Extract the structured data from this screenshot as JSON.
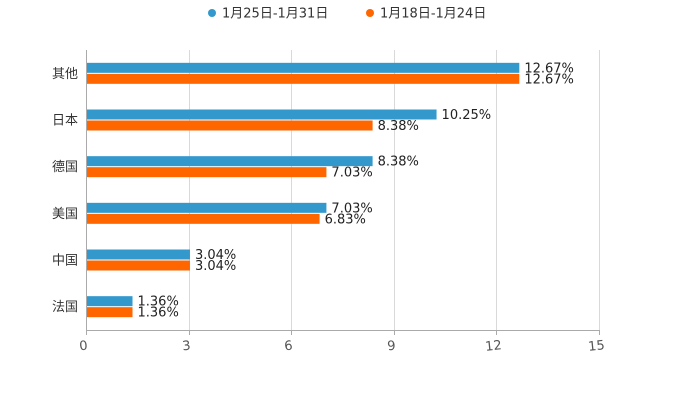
{
  "chart_data": {
    "type": "bar",
    "orientation": "horizontal",
    "title": "",
    "xlabel": "",
    "ylabel": "",
    "categories": [
      "其他",
      "日本",
      "德国",
      "美国",
      "中国",
      "法国"
    ],
    "series": [
      {
        "name": "1月25日-1月31日",
        "color": "#3399cc",
        "values": [
          12.67,
          10.25,
          8.38,
          7.03,
          3.04,
          1.36
        ],
        "labels": [
          "12.67%",
          "10.25%",
          "8.38%",
          "7.03%",
          "3.04%",
          "1.36%"
        ]
      },
      {
        "name": "1月18日-1月24日",
        "color": "#ff6600",
        "values": [
          12.67,
          8.38,
          7.03,
          6.83,
          3.04,
          1.36
        ],
        "labels": [
          "12.67%",
          "8.38%",
          "7.03%",
          "6.83%",
          "3.04%",
          "1.36%"
        ]
      }
    ],
    "xlim": [
      0,
      15
    ],
    "ticks": [
      0,
      3,
      6,
      9,
      12,
      15
    ],
    "tick_labels": [
      "0",
      "3",
      "6",
      "9",
      "12",
      "15"
    ],
    "grid": true,
    "legend_position": "top-center"
  }
}
